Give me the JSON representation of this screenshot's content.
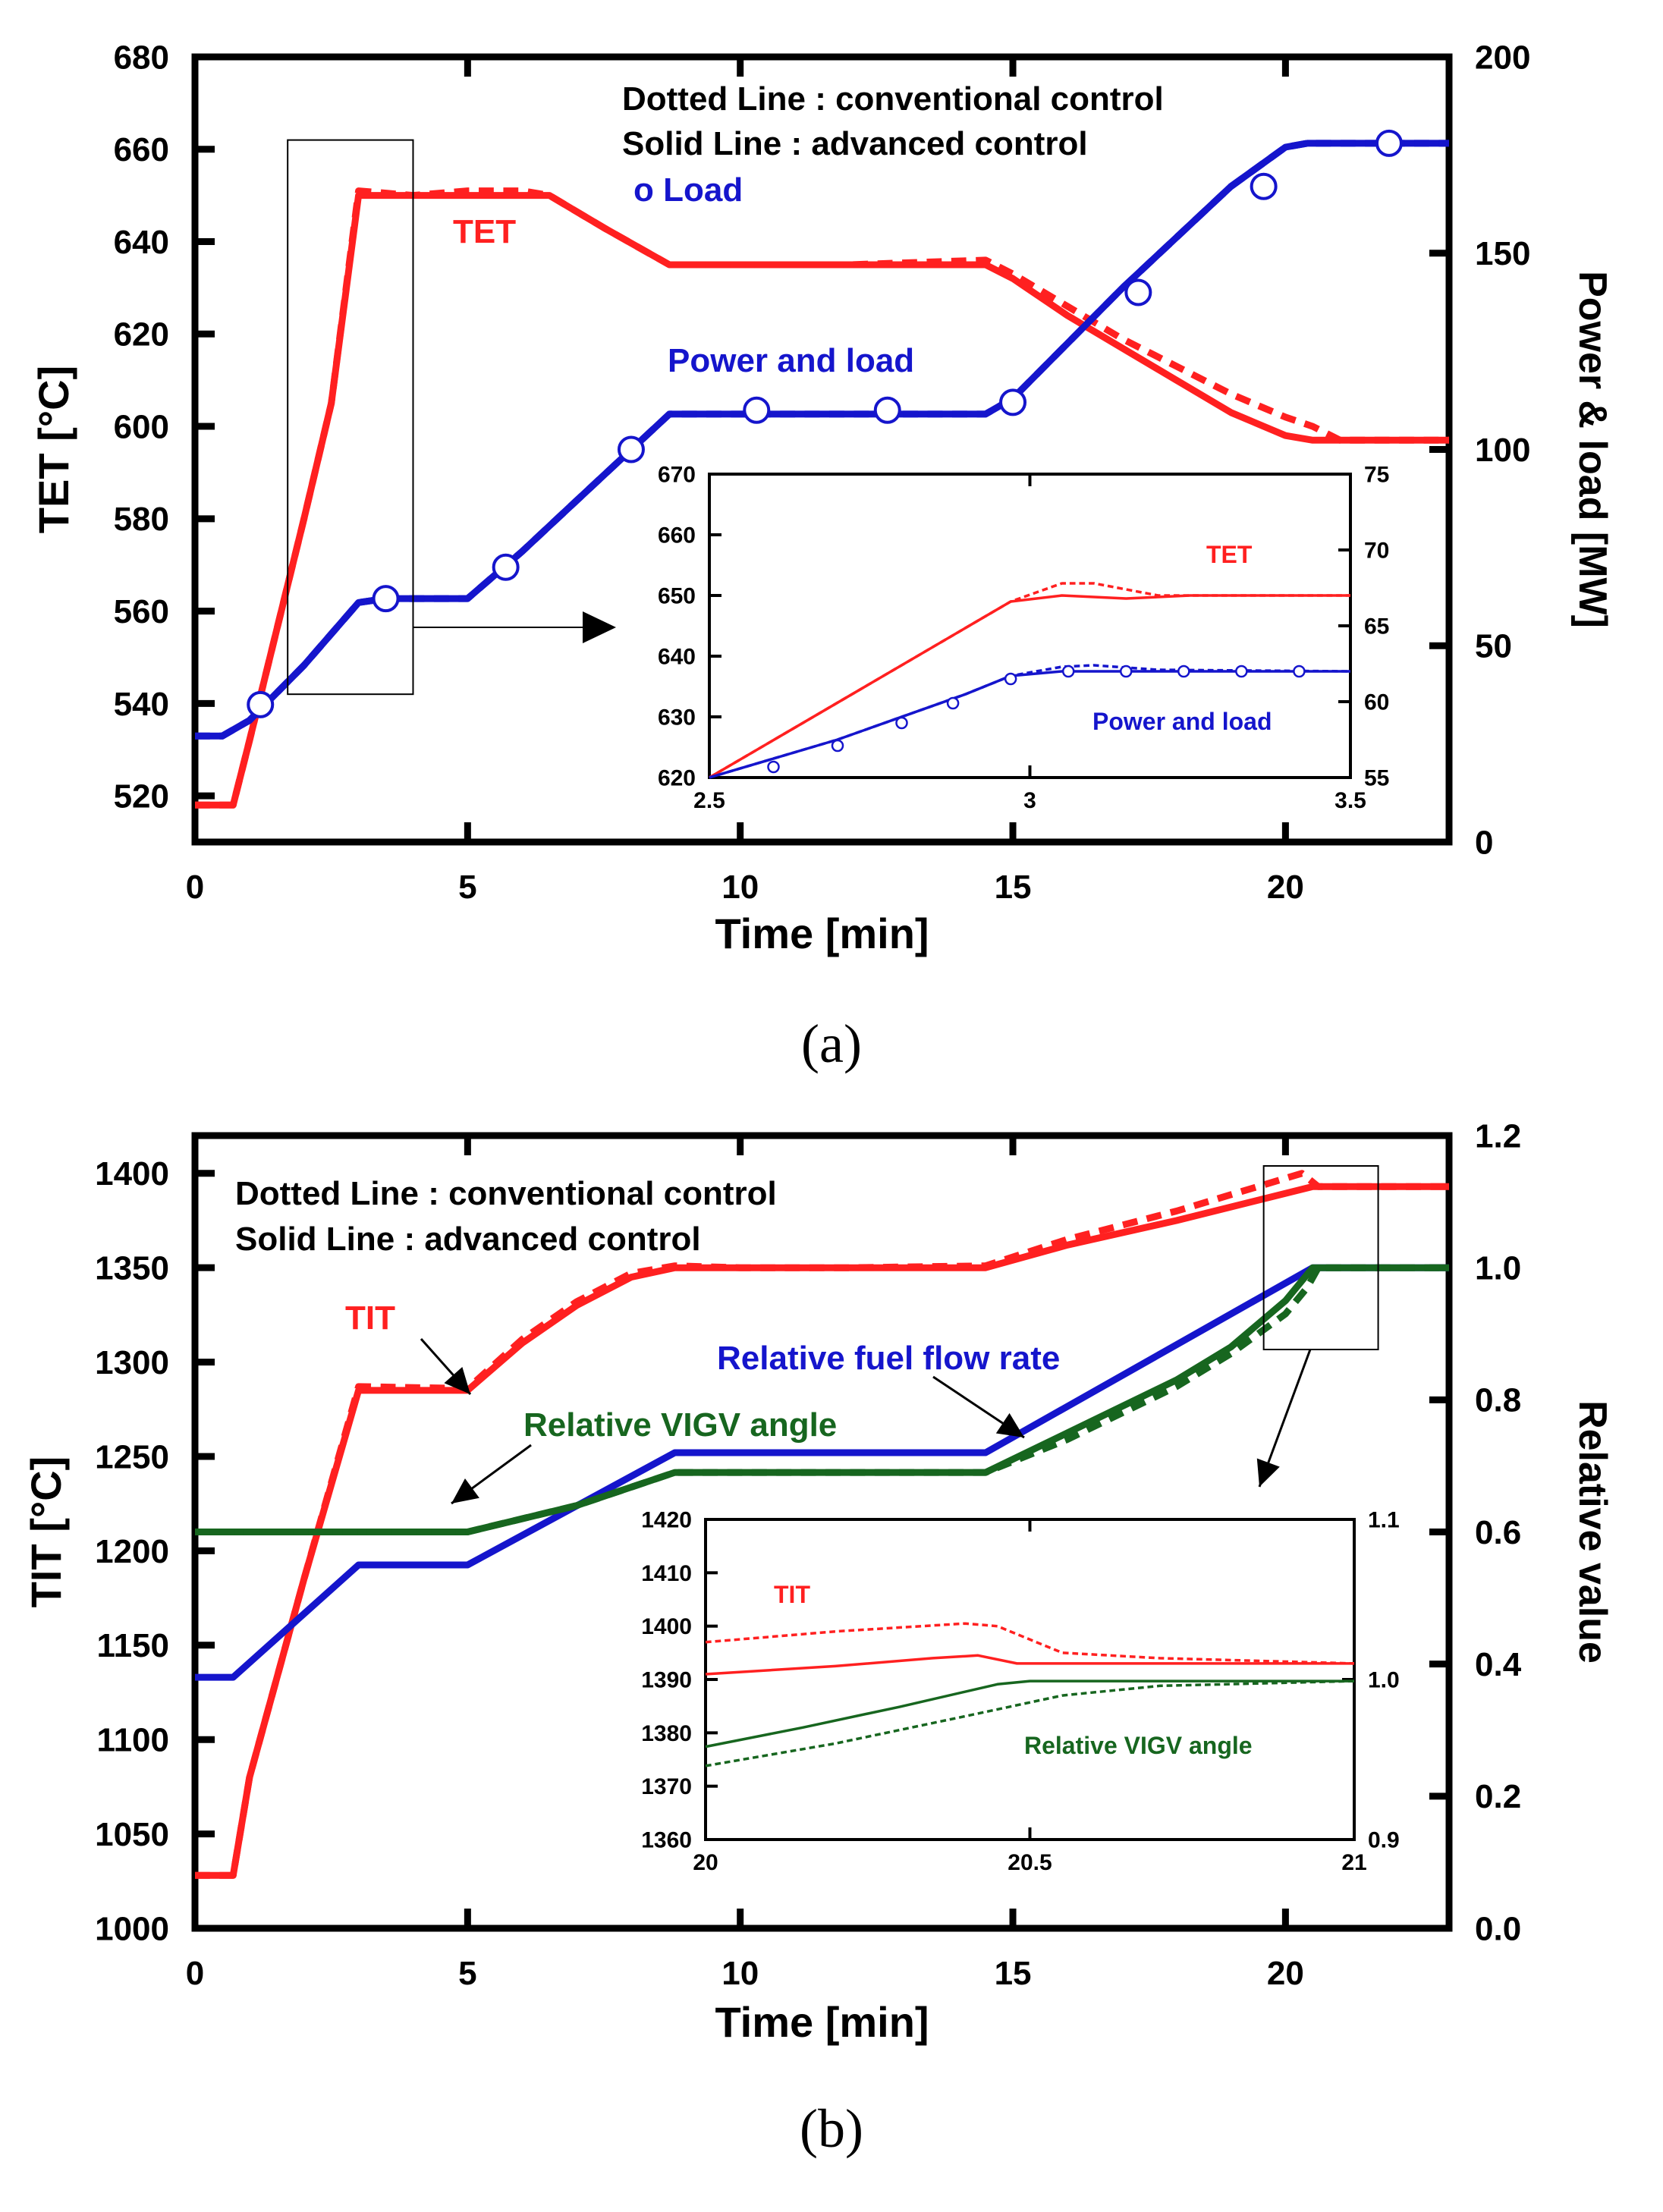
{
  "chart_data": [
    {
      "id": "a",
      "type": "line",
      "caption": "a",
      "xlabel": "Time [min]",
      "ylabel": "TET [°C]",
      "y2label": "Power & load [MW]",
      "xlim": [
        0,
        23
      ],
      "ylim": [
        510,
        680
      ],
      "y2lim": [
        0,
        200
      ],
      "xticks": [
        0,
        5,
        10,
        15,
        20
      ],
      "yticks": [
        520,
        540,
        560,
        580,
        600,
        620,
        640,
        660,
        680
      ],
      "y2ticks": [
        0,
        50,
        100,
        150,
        200
      ],
      "legend": [
        "Dotted Line : conventional control",
        "Solid Line : advanced control",
        "o  Load"
      ],
      "annotations": {
        "tet": "TET",
        "power": "Power and load"
      },
      "series": [
        {
          "name": "TET advanced",
          "axis": "y",
          "style": "solid",
          "x": [
            0,
            0.7,
            1.0,
            1.5,
            2.0,
            2.5,
            3.0,
            4.0,
            5.0,
            6.0,
            6.5,
            7.5,
            8.7,
            10,
            12,
            14.5,
            15,
            16,
            17,
            18,
            19,
            20,
            20.5,
            21,
            23
          ],
          "y": [
            518,
            518,
            532,
            556,
            580,
            605,
            650,
            650,
            650,
            650,
            650,
            643,
            635,
            635,
            635,
            635,
            632,
            624,
            617,
            610,
            603,
            598,
            597,
            597,
            597
          ]
        },
        {
          "name": "TET conventional",
          "axis": "y",
          "style": "dotted",
          "x": [
            0,
            0.7,
            1.0,
            1.5,
            2.0,
            2.5,
            3.0,
            4.0,
            5.0,
            6.0,
            6.5,
            7.5,
            8.7,
            10,
            12,
            14.5,
            15,
            16,
            17,
            18,
            19,
            20,
            20.5,
            21,
            23
          ],
          "y": [
            518,
            518,
            532,
            556,
            580,
            605,
            651,
            650,
            651,
            651,
            650,
            643,
            635,
            635,
            635,
            636,
            633,
            626,
            619,
            613,
            607,
            602,
            600,
            597,
            597
          ]
        },
        {
          "name": "Power advanced",
          "axis": "y2",
          "style": "solid",
          "x": [
            0,
            0.5,
            1.0,
            2.0,
            3.0,
            3.5,
            5.0,
            6.0,
            7.0,
            8.7,
            10,
            12,
            14.5,
            15,
            16,
            17,
            18,
            19,
            20,
            20.4,
            23
          ],
          "y": [
            27,
            27,
            31,
            45,
            61,
            62,
            62,
            74,
            87,
            109,
            109,
            109,
            109,
            113,
            127,
            141,
            154,
            167,
            177,
            178,
            178
          ]
        },
        {
          "name": "Power conventional",
          "axis": "y2",
          "style": "dotted",
          "x": [
            0,
            0.5,
            1.0,
            2.0,
            3.0,
            3.5,
            5.0,
            6.0,
            7.0,
            8.7,
            10,
            12,
            14.5,
            15,
            16,
            17,
            18,
            19,
            20,
            20.4,
            23
          ],
          "y": [
            27,
            27,
            31,
            45,
            61,
            62,
            62,
            74,
            87,
            109,
            109,
            109,
            109,
            113,
            127,
            141,
            154,
            167,
            177,
            178,
            178
          ]
        }
      ],
      "load_markers": {
        "x": [
          1.2,
          3.5,
          5.7,
          8.0,
          10.3,
          12.7,
          15.0,
          17.3,
          19.6,
          21.9
        ],
        "y": [
          35,
          62,
          70,
          100,
          110,
          110,
          112,
          140,
          167,
          178
        ]
      },
      "inset": {
        "xlim": [
          2.5,
          3.5
        ],
        "ylim": [
          620,
          670
        ],
        "y2lim": [
          55,
          75
        ],
        "xticks": [
          2.5,
          3.0,
          3.5
        ],
        "yticks": [
          620,
          630,
          640,
          650,
          660,
          670
        ],
        "y2ticks": [
          55,
          60,
          65,
          70,
          75
        ],
        "labels": {
          "tet": "TET",
          "power": "Power and load"
        },
        "series": [
          {
            "name": "TET advanced",
            "axis": "y",
            "style": "solid",
            "x": [
              2.5,
              2.97,
              3.05,
              3.15,
              3.25,
              3.5
            ],
            "y": [
              620,
              649,
              650,
              649.5,
              650,
              650
            ]
          },
          {
            "name": "TET conventional",
            "axis": "y",
            "style": "dotted",
            "x": [
              2.5,
              2.97,
              3.05,
              3.1,
              3.2,
              3.3,
              3.5
            ],
            "y": [
              620,
              649,
              652,
              652,
              650,
              650,
              650
            ]
          },
          {
            "name": "Power advanced",
            "axis": "y2",
            "style": "solid",
            "x": [
              2.5,
              2.7,
              2.9,
              2.97,
              3.05,
              3.5
            ],
            "y": [
              55,
              57.5,
              60.5,
              61.7,
              62,
              62
            ]
          },
          {
            "name": "Power conventional",
            "axis": "y2",
            "style": "dotted",
            "x": [
              2.5,
              2.7,
              2.9,
              2.97,
              3.05,
              3.1,
              3.2,
              3.5
            ],
            "y": [
              55,
              57.5,
              60.5,
              61.7,
              62.3,
              62.4,
              62.1,
              62
            ]
          }
        ],
        "load_markers": {
          "x": [
            2.6,
            2.7,
            2.8,
            2.88,
            2.97,
            3.06,
            3.15,
            3.24,
            3.33,
            3.42
          ],
          "y": [
            55.7,
            57.1,
            58.6,
            59.9,
            61.5,
            62,
            62,
            62,
            62,
            62
          ]
        }
      }
    },
    {
      "id": "b",
      "type": "line",
      "caption": "b",
      "xlabel": "Time [min]",
      "ylabel": "TIT [°C]",
      "y2label": "Relative value",
      "xlim": [
        0,
        23
      ],
      "ylim": [
        1000,
        1420
      ],
      "y2lim": [
        0.0,
        1.2
      ],
      "xticks": [
        0,
        5,
        10,
        15,
        20
      ],
      "yticks": [
        1000,
        1050,
        1100,
        1150,
        1200,
        1250,
        1300,
        1350,
        1400
      ],
      "y2ticks": [
        0.0,
        0.2,
        0.4,
        0.6,
        0.8,
        1.0,
        1.2
      ],
      "y2ticklabels": [
        "0.0",
        "0.2",
        "0.4",
        "0.6",
        "0.8",
        "1.0",
        "1.2"
      ],
      "legend": [
        "Dotted Line : conventional control",
        "Solid Line : advanced control"
      ],
      "annotations": {
        "tit": "TIT",
        "fuel": "Relative fuel flow rate",
        "vigv": "Relative VIGV angle"
      },
      "series": [
        {
          "name": "TIT advanced",
          "axis": "y",
          "style": "solid",
          "x": [
            0,
            0.7,
            1.0,
            2.0,
            3.0,
            5.0,
            6.0,
            7.0,
            8.0,
            8.8,
            10,
            12,
            14.5,
            16,
            18,
            20.5,
            23
          ],
          "y": [
            1028,
            1028,
            1080,
            1185,
            1285,
            1285,
            1310,
            1330,
            1345,
            1350,
            1350,
            1350,
            1350,
            1362,
            1375,
            1393,
            1393
          ]
        },
        {
          "name": "TIT conventional",
          "axis": "y",
          "style": "dotted",
          "x": [
            0,
            0.7,
            1.0,
            2.0,
            3.0,
            5.0,
            6.0,
            7.0,
            8.0,
            8.8,
            10,
            12,
            14.5,
            16,
            18,
            20.3,
            20.6,
            23
          ],
          "y": [
            1028,
            1028,
            1080,
            1185,
            1287,
            1286,
            1312,
            1332,
            1347,
            1351,
            1350,
            1350,
            1351,
            1365,
            1380,
            1400,
            1393,
            1393
          ]
        },
        {
          "name": "Fuel flow advanced",
          "axis": "y2",
          "style": "solid",
          "x": [
            0,
            0.7,
            3.0,
            5.0,
            8.8,
            14.5,
            20.5,
            23
          ],
          "y": [
            0.38,
            0.38,
            0.55,
            0.55,
            0.72,
            0.72,
            1.0,
            1.0
          ]
        },
        {
          "name": "VIGV advanced",
          "axis": "y2",
          "style": "solid",
          "x": [
            0,
            5.0,
            7.0,
            8.8,
            14.5,
            16,
            18,
            19,
            20,
            20.4,
            20.5,
            23
          ],
          "y": [
            0.6,
            0.6,
            0.64,
            0.69,
            0.69,
            0.75,
            0.83,
            0.88,
            0.95,
            0.99,
            1.0,
            1.0
          ]
        },
        {
          "name": "VIGV conventional",
          "axis": "y2",
          "style": "dotted",
          "x": [
            0,
            5.0,
            7.0,
            8.8,
            14.5,
            16,
            18,
            19,
            20,
            20.4,
            20.6,
            23
          ],
          "y": [
            0.6,
            0.6,
            0.64,
            0.69,
            0.69,
            0.74,
            0.82,
            0.87,
            0.93,
            0.97,
            1.0,
            1.0
          ]
        }
      ],
      "inset": {
        "xlim": [
          20,
          21
        ],
        "ylim": [
          1360,
          1420
        ],
        "y2lim": [
          0.9,
          1.1
        ],
        "xticks": [
          20,
          20.5,
          21
        ],
        "xticklabels": [
          "20",
          "20.5",
          "21"
        ],
        "yticks": [
          1360,
          1370,
          1380,
          1390,
          1400,
          1410,
          1420
        ],
        "y2ticks": [
          0.9,
          1.0,
          1.1
        ],
        "y2ticklabels": [
          "0.9",
          "1.0",
          "1.1"
        ],
        "labels": {
          "tit": "TIT",
          "vigv": "Relative VIGV angle"
        },
        "series": [
          {
            "name": "TIT advanced",
            "axis": "y",
            "style": "solid",
            "x": [
              20,
              20.2,
              20.35,
              20.42,
              20.48,
              20.6,
              21
            ],
            "y": [
              1391,
              1392.5,
              1394,
              1394.5,
              1393,
              1393,
              1393
            ]
          },
          {
            "name": "TIT conventional",
            "axis": "y",
            "style": "dotted",
            "x": [
              20,
              20.2,
              20.4,
              20.45,
              20.5,
              20.55,
              20.7,
              21
            ],
            "y": [
              1397,
              1399,
              1400.5,
              1400,
              1397.5,
              1395,
              1394,
              1393
            ]
          },
          {
            "name": "VIGV advanced",
            "axis": "y2",
            "style": "solid",
            "x": [
              20,
              20.15,
              20.3,
              20.45,
              20.5,
              21
            ],
            "y": [
              0.958,
              0.97,
              0.983,
              0.997,
              0.999,
              0.999
            ]
          },
          {
            "name": "VIGV conventional",
            "axis": "y2",
            "style": "dotted",
            "x": [
              20,
              20.2,
              20.4,
              20.55,
              20.7,
              21
            ],
            "y": [
              0.946,
              0.96,
              0.977,
              0.99,
              0.996,
              0.999
            ]
          }
        ]
      }
    }
  ],
  "colors": {
    "tet": "#ff2020",
    "power": "#1515cc",
    "vigv": "#17661f",
    "axis": "#000000"
  }
}
